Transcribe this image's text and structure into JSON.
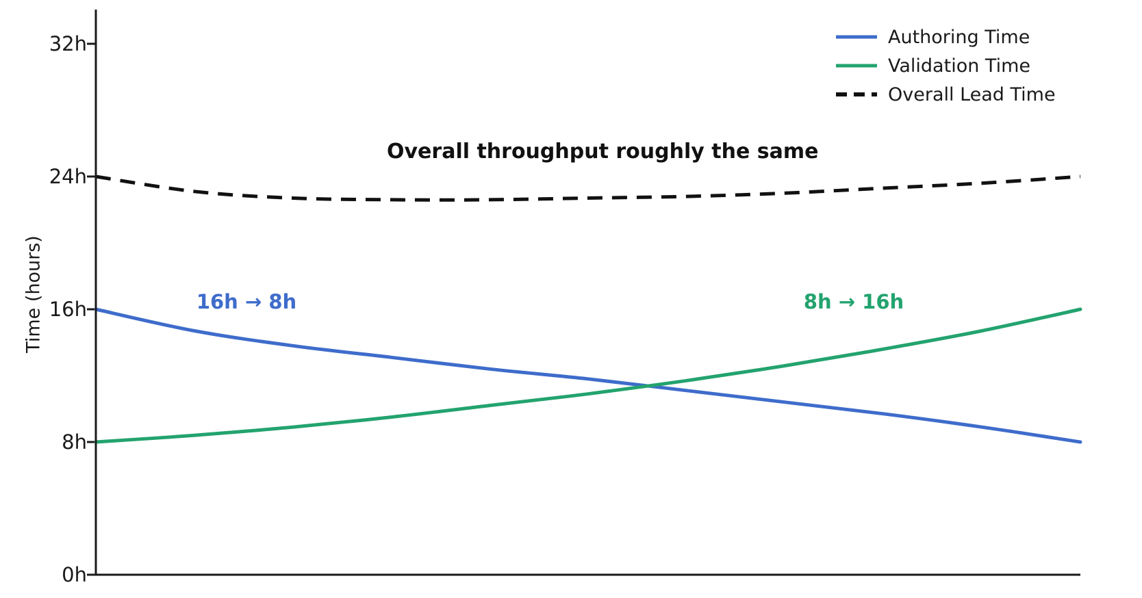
{
  "chart_data": {
    "type": "line",
    "title": "",
    "xlabel": "",
    "ylabel": "Time (hours)",
    "grid": false,
    "legend_position": "upper-right",
    "ylim": [
      0,
      34
    ],
    "yticks": [
      {
        "value": 0,
        "label": "0h"
      },
      {
        "value": 8,
        "label": "8h"
      },
      {
        "value": 16,
        "label": "16h"
      },
      {
        "value": 24,
        "label": "24h"
      },
      {
        "value": 32,
        "label": "32h"
      }
    ],
    "x_axis_ticks_visible": false,
    "x_normalized": [
      0,
      0.1,
      0.2,
      0.3,
      0.4,
      0.5,
      0.6,
      0.7,
      0.8,
      0.9,
      1.0
    ],
    "series": [
      {
        "name": "Authoring Time",
        "color": "#3e6ccb",
        "line_style": "solid",
        "start_hours": 16,
        "end_hours": 8,
        "values": [
          16.0,
          14.7,
          13.8,
          13.1,
          12.4,
          11.8,
          11.1,
          10.4,
          9.7,
          8.9,
          8.0
        ]
      },
      {
        "name": "Validation Time",
        "color": "#23a36e",
        "line_style": "solid",
        "start_hours": 8,
        "end_hours": 16,
        "values": [
          8.0,
          8.4,
          8.9,
          9.5,
          10.2,
          10.9,
          11.7,
          12.6,
          13.6,
          14.7,
          16.0
        ]
      },
      {
        "name": "Overall Lead Time",
        "color": "#111111",
        "line_style": "dashed",
        "start_hours": 24,
        "end_hours": 24,
        "values": [
          24.0,
          23.1,
          22.7,
          22.6,
          22.6,
          22.7,
          22.8,
          23.0,
          23.3,
          23.6,
          24.0
        ]
      }
    ],
    "annotations": [
      {
        "id": "throughput-note",
        "text": "Overall throughput roughly the same",
        "color": "#111111"
      },
      {
        "id": "authoring-shift",
        "text": "16h → 8h",
        "color": "#3e6ccb"
      },
      {
        "id": "validation-shift",
        "text": "8h → 16h",
        "color": "#23a36e"
      }
    ]
  },
  "colors": {
    "background": "#ffffff",
    "axis": "#1a1a1a",
    "tick_text": "#1a1a1a"
  }
}
